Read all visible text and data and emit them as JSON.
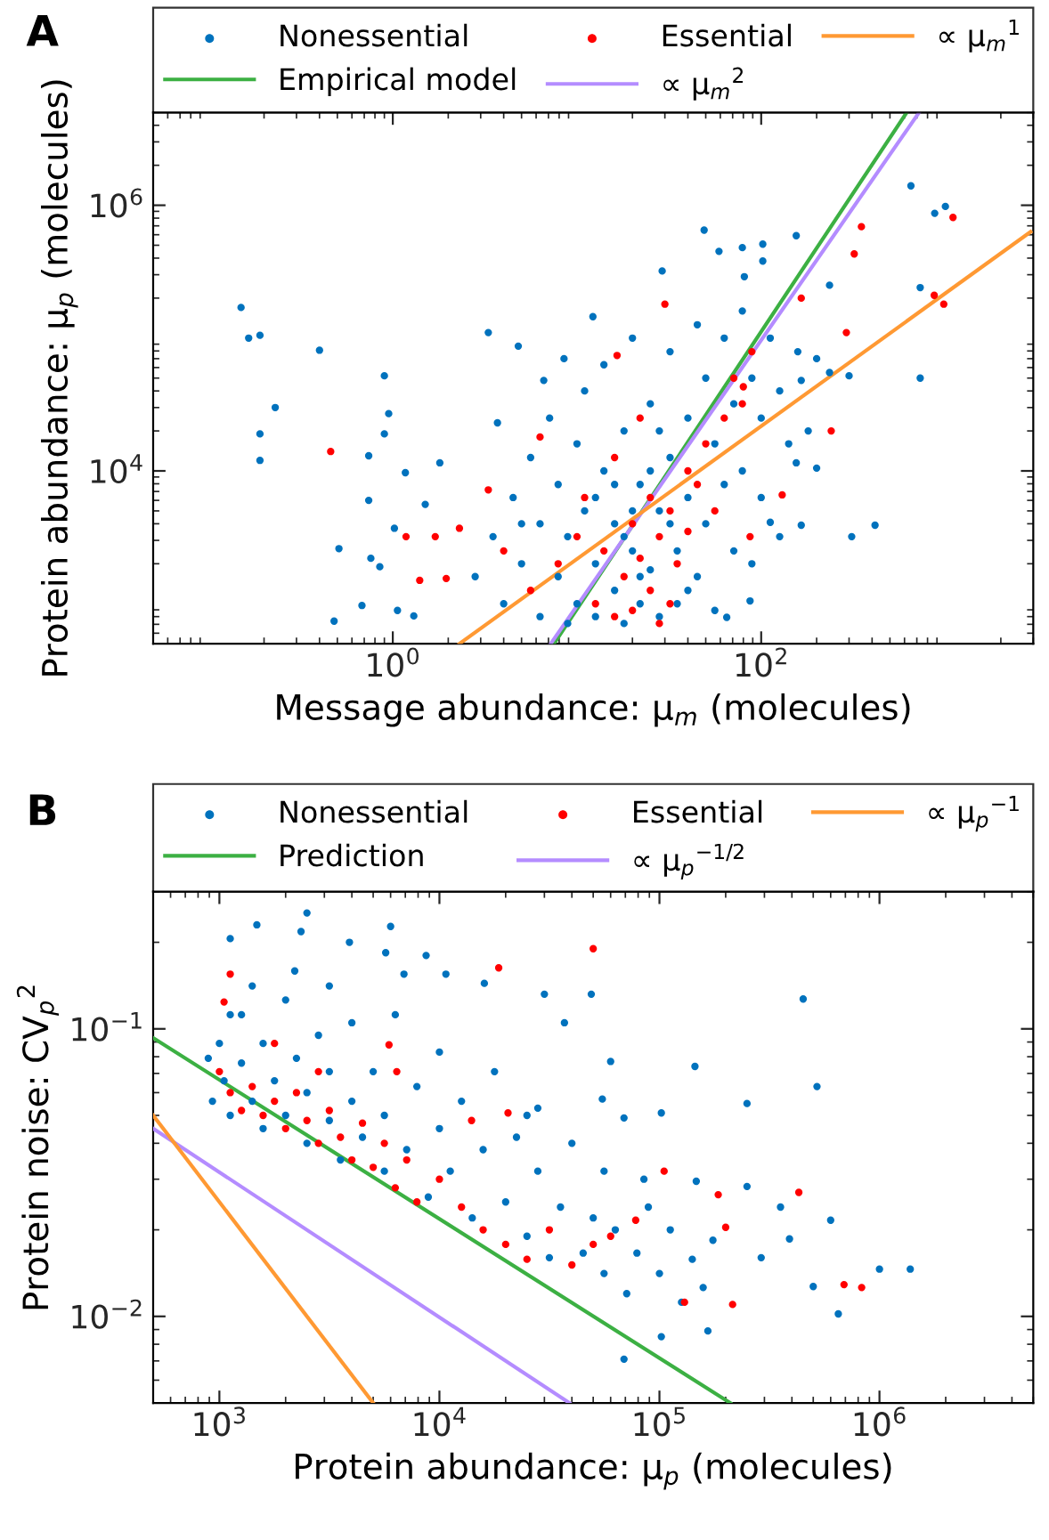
{
  "chart_data": [
    {
      "type": "scatter",
      "title": "A",
      "xlabel": "Message abundance: μ$_{m}$ (molecules)",
      "ylabel": "Protein abundance: μ$_{p}$ (molecules)",
      "log": "xy",
      "xlim": [
        0.05,
        3000
      ],
      "ylim": [
        500,
        5000000
      ],
      "xticks": [
        {
          "value": 1,
          "label": "10$^{0}$"
        },
        {
          "value": 100,
          "label": "10$^{2}$"
        }
      ],
      "yticks": [
        {
          "value": 10000,
          "label": "10$^{4}$"
        },
        {
          "value": 1000000,
          "label": "10$^{6}$"
        }
      ],
      "grid": false,
      "legend": "top",
      "series": [
        {
          "name": "Nonessential",
          "marker": "circle",
          "color": "#0072bd",
          "x": [
            0.15,
            0.165,
            0.19,
            0.23,
            0.19,
            0.19,
            0.4,
            0.9,
            0.95,
            0.9,
            0.74,
            1.17,
            1.5,
            0.74,
            0.51,
            0.48,
            0.68,
            0.76,
            0.85,
            1.02,
            1.3,
            1.06,
            1.8,
            3.3,
            4.8,
            3.7,
            6.6,
            8.5,
            12.2,
            49,
            29,
            59,
            79,
            102,
            102,
            81,
            155,
            650,
            875,
            1000,
            730,
            730,
            235,
            235,
            300,
            310,
            415,
            165,
            200,
            155,
            180,
            112,
            87,
            65,
            165,
            200,
            2.8,
            3.5,
            4.0,
            4.5,
            5.0,
            5.6,
            6.3,
            6.3,
            7.1,
            7.9,
            7.9,
            8.9,
            8.9,
            10,
            10,
            11,
            11,
            12.6,
            12.6,
            14,
            14,
            16,
            16,
            18,
            18,
            20,
            20,
            22,
            22,
            25,
            25,
            28,
            28,
            32,
            32,
            35,
            35,
            40,
            40,
            45,
            45,
            50,
            50,
            56,
            56,
            63,
            63,
            71,
            71,
            79,
            79,
            89,
            89,
            100,
            100,
            112,
            126,
            126,
            141,
            158,
            20,
            25,
            16,
            32,
            40,
            22,
            18,
            28,
            12.6,
            5
          ],
          "values": [
            170000.0,
            100000.0,
            105000.0,
            30000.0,
            19000.0,
            12000.0,
            81000.0,
            52000.0,
            27000.0,
            19000.0,
            13000.0,
            9700.0,
            5600.0,
            6000.0,
            2600.0,
            740,
            970,
            2200.0,
            1900.0,
            3700.0,
            810,
            890,
            11500.0,
            110000.0,
            87000.0,
            23000.0,
            48000.0,
            70000.0,
            145000.0,
            650000.0,
            320000.0,
            450000.0,
            480000.0,
            510000.0,
            380000.0,
            290000.0,
            590000.0,
            1400000.0,
            870000.0,
            980000.0,
            240000.0,
            50000.0,
            250000.0,
            55000.0,
            52000.0,
            3200.0,
            3900.0,
            3900.0,
            10500.0,
            11500.0,
            20000.0,
            4100.0,
            1050.0,
            790,
            48000.0,
            70000.0,
            1600,
            3200,
            1000,
            6300,
            2000,
            12600,
            800,
            4000,
            25000,
            1600,
            7900,
            710,
            3200,
            16000,
            1000,
            5000,
            40000,
            800,
            2000,
            10000,
            63000,
            1260,
            4000,
            20000,
            710,
            2500,
            100000,
            7900,
            1000,
            32000,
            1800,
            5000,
            800,
            12600,
            79000,
            2500,
            1000,
            25000,
            6300,
            126000,
            1600,
            50000,
            4000,
            16000,
            890,
            100000,
            7900,
            32000,
            2500,
            160000,
            10000,
            50000,
            2000,
            25000,
            6300,
            100000,
            40000,
            3200,
            16000,
            79000,
            5000,
            10000,
            7900,
            4000,
            1260,
            1600,
            3200,
            20000,
            6300,
            4000
          ]
        },
        {
          "name": "Essential",
          "marker": "circle",
          "color": "#ff0000",
          "x": [
            0.46,
            1.18,
            1.4,
            1.7,
            2.3,
            1.95,
            3.3,
            6.3,
            16.5,
            30,
            350,
            320,
            1100,
            870,
            980,
            240,
            165,
            130,
            87,
            290,
            80,
            12.6,
            14,
            16,
            18,
            20,
            20,
            22,
            25,
            25,
            28,
            32,
            32,
            35,
            40,
            40,
            45,
            50,
            56,
            63,
            71,
            79,
            10,
            7.9,
            11,
            16,
            5.6,
            4,
            22,
            89,
            28
          ],
          "values": [
            14000.0,
            3200.0,
            1500.0,
            3200.0,
            3700.0,
            1550.0,
            7200.0,
            18000.0,
            74000.0,
            180000.0,
            690000.0,
            430000.0,
            810000.0,
            210000.0,
            180000.0,
            20000.0,
            200000.0,
            6600.0,
            3200.0,
            110000.0,
            43000.0,
            1000,
            2500,
            800,
            1600,
            4000,
            890,
            2200,
            1260,
            6300,
            3200,
            1000,
            5000,
            2000,
            10000,
            3500,
            7900,
            16000,
            5000,
            25000,
            50000,
            32000,
            3200,
            2000,
            6300,
            12600,
            1260,
            2500,
            25000,
            79000,
            710
          ]
        },
        {
          "name": "Empirical model",
          "type": "line",
          "marker": "none",
          "line_style": "solid",
          "color": "#3cb043",
          "x": [
            7.5,
            617
          ],
          "values": [
            500,
            5000000
          ]
        },
        {
          "name": "∝ μ$_{m}$$^{2}$",
          "type": "line",
          "marker": "none",
          "line_style": "solid",
          "color": "#b48cff",
          "x": [
            7.2,
            720
          ],
          "values": [
            500,
            5000000
          ]
        },
        {
          "name": "∝ μ$_{m}$$^{1}$",
          "type": "line",
          "marker": "none",
          "line_style": "solid",
          "color": "#ff9933",
          "x": [
            2.3,
            2900
          ],
          "values": [
            500,
            630000
          ]
        }
      ]
    },
    {
      "type": "scatter",
      "title": "B",
      "xlabel": "Protein abundance: μ$_{p}$ (molecules)",
      "ylabel": "Protein noise: CV$_{p}$$^{2}$",
      "log": "xy",
      "xlim": [
        500,
        5000000
      ],
      "ylim": [
        0.005,
        0.3
      ],
      "xticks": [
        {
          "value": 1000,
          "label": "10$^{3}$"
        },
        {
          "value": 10000,
          "label": "10$^{4}$"
        },
        {
          "value": 100000,
          "label": "10$^{5}$"
        },
        {
          "value": 1000000,
          "label": "10$^{6}$"
        }
      ],
      "yticks": [
        {
          "value": 0.01,
          "label": "10$^{−2}$"
        },
        {
          "value": 0.1,
          "label": "10$^{−1}$"
        }
      ],
      "grid": false,
      "legend": "top",
      "series": [
        {
          "name": "Nonessential",
          "marker": "circle",
          "color": "#0072bd",
          "x": [
            1120,
            1480,
            2500,
            2350,
            3900,
            6000,
            5700,
            8700,
            2200,
            10700,
            6900,
            16000,
            30000,
            49000,
            37000,
            450000,
            145000,
            520000,
            250000,
            102000,
            60000,
            355000,
            600000,
            390000,
            290000,
            1000000,
            1380000,
            500000,
            650000,
            166000,
            102000,
            69000,
            175000,
            147000,
            250000,
            85000,
            56000,
            69000,
            55000,
            28000,
            890,
            930,
            1000,
            1050,
            1120,
            1260,
            1260,
            1410,
            1580,
            1580,
            1780,
            2000,
            2000,
            2240,
            2500,
            2500,
            2820,
            3160,
            3160,
            3550,
            4000,
            4000,
            4470,
            5000,
            5620,
            5620,
            6300,
            7100,
            7900,
            8900,
            10000,
            10000,
            11200,
            12600,
            14100,
            15800,
            17800,
            20000,
            22400,
            25000,
            28000,
            31600,
            35500,
            40000,
            45000,
            50000,
            56000,
            63000,
            71000,
            79000,
            89000,
            100000,
            112000,
            126000,
            141000,
            158000,
            1410,
            1120,
            3160,
            25000
          ],
          "values": [
            0.206,
            0.23,
            0.253,
            0.218,
            0.2,
            0.227,
            0.184,
            0.18,
            0.159,
            0.155,
            0.155,
            0.144,
            0.132,
            0.132,
            0.105,
            0.127,
            0.074,
            0.063,
            0.055,
            0.051,
            0.077,
            0.024,
            0.0216,
            0.0186,
            0.016,
            0.0146,
            0.0146,
            0.0127,
            0.0102,
            0.0089,
            0.0085,
            0.0071,
            0.0184,
            0.0295,
            0.0283,
            0.03,
            0.032,
            0.049,
            0.057,
            0.053,
            0.079,
            0.056,
            0.089,
            0.066,
            0.05,
            0.112,
            0.076,
            0.056,
            0.089,
            0.045,
            0.066,
            0.126,
            0.05,
            0.079,
            0.04,
            0.06,
            0.095,
            0.048,
            0.071,
            0.035,
            0.056,
            0.105,
            0.042,
            0.071,
            0.032,
            0.05,
            0.112,
            0.038,
            0.063,
            0.026,
            0.045,
            0.083,
            0.032,
            0.056,
            0.022,
            0.038,
            0.071,
            0.025,
            0.042,
            0.019,
            0.032,
            0.016,
            0.024,
            0.04,
            0.0166,
            0.022,
            0.0141,
            0.02,
            0.012,
            0.0166,
            0.024,
            0.0141,
            0.02,
            0.0112,
            0.0158,
            0.0126,
            0.141,
            0.112,
            0.141,
            0.05
          ]
        },
        {
          "name": "Essential",
          "marker": "circle",
          "color": "#ff0000",
          "x": [
            1120,
            1050,
            18600,
            50000,
            5900,
            6400,
            105000,
            185000,
            200000,
            430000,
            690000,
            830000,
            215000,
            130000,
            60000,
            78000,
            20500,
            14000,
            1000,
            1120,
            1260,
            1410,
            1580,
            1780,
            2000,
            2240,
            2500,
            2820,
            3160,
            3550,
            4000,
            4470,
            5000,
            5620,
            6300,
            7100,
            7900,
            10000,
            12600,
            15800,
            20000,
            25000,
            31600,
            40000,
            50000,
            1780,
            2820
          ],
          "values": [
            0.155,
            0.124,
            0.163,
            0.19,
            0.088,
            0.071,
            0.032,
            0.0265,
            0.0204,
            0.027,
            0.0129,
            0.0126,
            0.011,
            0.0112,
            0.019,
            0.0216,
            0.051,
            0.048,
            0.071,
            0.06,
            0.052,
            0.063,
            0.05,
            0.056,
            0.045,
            0.06,
            0.048,
            0.04,
            0.052,
            0.042,
            0.035,
            0.047,
            0.033,
            0.04,
            0.028,
            0.035,
            0.025,
            0.03,
            0.024,
            0.02,
            0.0178,
            0.0158,
            0.02,
            0.0151,
            0.0178,
            0.089,
            0.071
          ]
        },
        {
          "name": "Prediction",
          "type": "line",
          "marker": "none",
          "line_style": "solid",
          "color": "#3cb043",
          "x": [
            500,
            210000
          ],
          "values": [
            0.093,
            0.005
          ]
        },
        {
          "name": "∝ μ$_{p}$$^{−1/2}$",
          "type": "line",
          "marker": "none",
          "line_style": "solid",
          "color": "#b48cff",
          "x": [
            500,
            39000
          ],
          "values": [
            0.045,
            0.005
          ]
        },
        {
          "name": "∝ μ$_{p}$$^{−1}$",
          "type": "line",
          "marker": "none",
          "line_style": "solid",
          "color": "#ff9933",
          "x": [
            500,
            5000
          ],
          "values": [
            0.05,
            0.005
          ]
        }
      ]
    }
  ]
}
